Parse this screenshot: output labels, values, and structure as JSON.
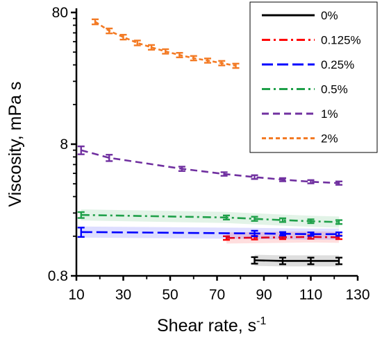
{
  "chart_data": {
    "type": "line",
    "xlabel": "Shear rate, s",
    "xlabel_superscript": "-1",
    "ylabel": "Viscosity, mPa s",
    "xlim": [
      10,
      130
    ],
    "ylim": [
      0.8,
      80
    ],
    "y_scale": "log",
    "x_ticks": [
      "10",
      "30",
      "50",
      "70",
      "90",
      "110",
      "130"
    ],
    "y_ticks": [
      "0.8",
      "8",
      "80"
    ],
    "grid": false,
    "legend_position": "top-right",
    "series": [
      {
        "name": "0%",
        "color": "#000000",
        "dash": "solid",
        "x": [
          86,
          98,
          110,
          122
        ],
        "y": [
          1.05,
          1.04,
          1.04,
          1.04
        ],
        "err": [
          0.06,
          0.06,
          0.06,
          0.06
        ]
      },
      {
        "name": "0.125%",
        "color": "#ff0000",
        "dash": "dashdot",
        "x": [
          74,
          86,
          98,
          110,
          122
        ],
        "y": [
          1.55,
          1.56,
          1.57,
          1.58,
          1.57
        ],
        "err": [
          0.05,
          0.05,
          0.05,
          0.05,
          0.05
        ]
      },
      {
        "name": "0.25%",
        "color": "#0000ff",
        "dash": "longdash",
        "x": [
          12,
          86,
          98,
          110,
          122
        ],
        "y": [
          1.72,
          1.68,
          1.67,
          1.66,
          1.66
        ],
        "err": [
          0.14,
          0.08,
          0.05,
          0.05,
          0.05
        ]
      },
      {
        "name": "0.5%",
        "color": "#1fa049",
        "dash": "dashdot",
        "x": [
          12,
          74,
          86,
          98,
          110,
          122
        ],
        "y": [
          2.32,
          2.22,
          2.17,
          2.12,
          2.08,
          2.05
        ],
        "err": [
          0.12,
          0.08,
          0.08,
          0.07,
          0.07,
          0.07
        ]
      },
      {
        "name": "1%",
        "color": "#7030a0",
        "dash": "dash",
        "x": [
          12,
          24,
          55,
          73,
          86,
          98,
          110,
          122
        ],
        "y": [
          7.2,
          6.3,
          5.2,
          4.75,
          4.5,
          4.3,
          4.15,
          4.05
        ],
        "err": [
          0.5,
          0.35,
          0.2,
          0.15,
          0.15,
          0.12,
          0.12,
          0.12
        ]
      },
      {
        "name": "2%",
        "color": "#f37a24",
        "dash": "shortdash",
        "x": [
          18,
          24,
          30,
          36,
          42,
          48,
          54,
          60,
          66,
          72,
          78
        ],
        "y": [
          68,
          58,
          52,
          47,
          43.5,
          40.5,
          38,
          36,
          34.5,
          33,
          31.5
        ],
        "err": [
          3.0,
          2.5,
          2.2,
          2.0,
          1.8,
          1.6,
          1.5,
          1.4,
          1.3,
          1.3,
          1.2
        ]
      }
    ]
  }
}
